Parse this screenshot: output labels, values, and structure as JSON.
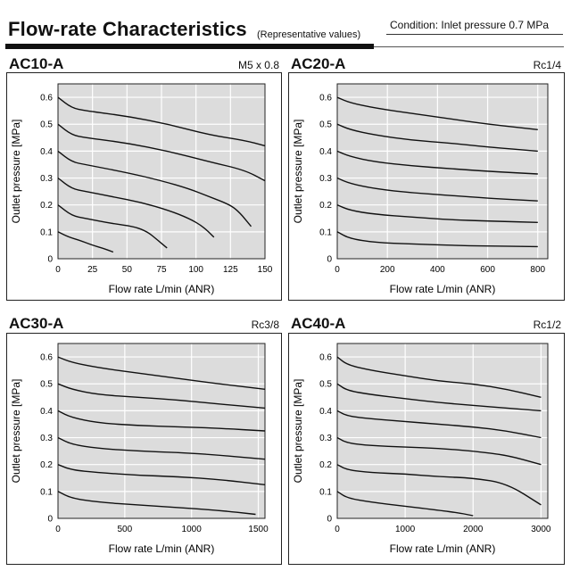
{
  "header": {
    "title": "Flow-rate Characteristics",
    "subtitle": "(Representative values)",
    "condition": "Condition: Inlet pressure 0.7 MPa"
  },
  "colors": {
    "plot_background": "#dcdcdc",
    "curve": "#111111",
    "grid": "#ffffff"
  },
  "chart_data": [
    {
      "type": "line",
      "model": "AC10-A",
      "port": "M5 x 0.8",
      "xlabel": "Flow rate L/min (ANR)",
      "ylabel": "Outlet pressure [MPa]",
      "xlim": [
        0,
        150
      ],
      "ylim": [
        0,
        0.65
      ],
      "xticks": [
        0,
        25,
        50,
        75,
        100,
        125,
        150
      ],
      "yticks": [
        0,
        0.1,
        0.2,
        0.3,
        0.4,
        0.5,
        0.6
      ],
      "grid": true,
      "series": [
        {
          "values": [
            [
              0,
              0.6
            ],
            [
              10,
              0.56
            ],
            [
              20,
              0.55
            ],
            [
              50,
              0.53
            ],
            [
              80,
              0.5
            ],
            [
              110,
              0.46
            ],
            [
              135,
              0.44
            ],
            [
              150,
              0.42
            ]
          ]
        },
        {
          "values": [
            [
              0,
              0.5
            ],
            [
              10,
              0.46
            ],
            [
              20,
              0.45
            ],
            [
              50,
              0.43
            ],
            [
              80,
              0.4
            ],
            [
              110,
              0.36
            ],
            [
              135,
              0.33
            ],
            [
              150,
              0.29
            ]
          ]
        },
        {
          "values": [
            [
              0,
              0.4
            ],
            [
              10,
              0.36
            ],
            [
              20,
              0.35
            ],
            [
              50,
              0.32
            ],
            [
              75,
              0.29
            ],
            [
              95,
              0.26
            ],
            [
              110,
              0.23
            ],
            [
              125,
              0.2
            ],
            [
              132,
              0.17
            ],
            [
              140,
              0.12
            ]
          ]
        },
        {
          "values": [
            [
              0,
              0.3
            ],
            [
              10,
              0.26
            ],
            [
              20,
              0.25
            ],
            [
              40,
              0.23
            ],
            [
              60,
              0.21
            ],
            [
              80,
              0.18
            ],
            [
              95,
              0.15
            ],
            [
              105,
              0.12
            ],
            [
              113,
              0.08
            ]
          ]
        },
        {
          "values": [
            [
              0,
              0.2
            ],
            [
              10,
              0.16
            ],
            [
              20,
              0.15
            ],
            [
              40,
              0.13
            ],
            [
              55,
              0.12
            ],
            [
              65,
              0.1
            ],
            [
              72,
              0.07
            ],
            [
              79,
              0.04
            ]
          ]
        },
        {
          "values": [
            [
              0,
              0.1
            ],
            [
              8,
              0.08
            ],
            [
              15,
              0.07
            ],
            [
              25,
              0.05
            ],
            [
              32,
              0.04
            ],
            [
              40,
              0.025
            ]
          ]
        }
      ]
    },
    {
      "type": "line",
      "model": "AC20-A",
      "port": "Rc1/4",
      "xlabel": "Flow rate L/min (ANR)",
      "ylabel": "Outlet pressure [MPa]",
      "xlim": [
        0,
        840
      ],
      "ylim": [
        0,
        0.65
      ],
      "xticks": [
        0,
        200,
        400,
        600,
        800
      ],
      "yticks": [
        0,
        0.1,
        0.2,
        0.3,
        0.4,
        0.5,
        0.6
      ],
      "grid": true,
      "series": [
        {
          "values": [
            [
              0,
              0.6
            ],
            [
              50,
              0.58
            ],
            [
              150,
              0.56
            ],
            [
              300,
              0.54
            ],
            [
              450,
              0.52
            ],
            [
              600,
              0.5
            ],
            [
              800,
              0.48
            ]
          ]
        },
        {
          "values": [
            [
              0,
              0.5
            ],
            [
              50,
              0.48
            ],
            [
              150,
              0.46
            ],
            [
              300,
              0.44
            ],
            [
              450,
              0.43
            ],
            [
              600,
              0.415
            ],
            [
              800,
              0.4
            ]
          ]
        },
        {
          "values": [
            [
              0,
              0.4
            ],
            [
              50,
              0.38
            ],
            [
              150,
              0.36
            ],
            [
              300,
              0.345
            ],
            [
              450,
              0.335
            ],
            [
              600,
              0.325
            ],
            [
              800,
              0.315
            ]
          ]
        },
        {
          "values": [
            [
              0,
              0.3
            ],
            [
              50,
              0.28
            ],
            [
              150,
              0.26
            ],
            [
              300,
              0.245
            ],
            [
              450,
              0.235
            ],
            [
              600,
              0.225
            ],
            [
              800,
              0.215
            ]
          ]
        },
        {
          "values": [
            [
              0,
              0.2
            ],
            [
              50,
              0.18
            ],
            [
              150,
              0.165
            ],
            [
              300,
              0.155
            ],
            [
              450,
              0.145
            ],
            [
              600,
              0.14
            ],
            [
              800,
              0.135
            ]
          ]
        },
        {
          "values": [
            [
              0,
              0.1
            ],
            [
              50,
              0.075
            ],
            [
              150,
              0.06
            ],
            [
              300,
              0.055
            ],
            [
              450,
              0.05
            ],
            [
              600,
              0.047
            ],
            [
              800,
              0.045
            ]
          ]
        }
      ]
    },
    {
      "type": "line",
      "model": "AC30-A",
      "port": "Rc3/8",
      "xlabel": "Flow rate L/min (ANR)",
      "ylabel": "Outlet pressure [MPa]",
      "xlim": [
        0,
        1550
      ],
      "ylim": [
        0,
        0.65
      ],
      "xticks": [
        0,
        500,
        1000,
        1500
      ],
      "yticks": [
        0,
        0.1,
        0.2,
        0.3,
        0.4,
        0.5,
        0.6
      ],
      "grid": true,
      "series": [
        {
          "values": [
            [
              0,
              0.6
            ],
            [
              100,
              0.58
            ],
            [
              300,
              0.56
            ],
            [
              600,
              0.54
            ],
            [
              900,
              0.52
            ],
            [
              1200,
              0.5
            ],
            [
              1550,
              0.48
            ]
          ]
        },
        {
          "values": [
            [
              0,
              0.5
            ],
            [
              100,
              0.48
            ],
            [
              300,
              0.46
            ],
            [
              600,
              0.45
            ],
            [
              900,
              0.44
            ],
            [
              1200,
              0.425
            ],
            [
              1550,
              0.41
            ]
          ]
        },
        {
          "values": [
            [
              0,
              0.4
            ],
            [
              100,
              0.375
            ],
            [
              300,
              0.355
            ],
            [
              600,
              0.345
            ],
            [
              900,
              0.34
            ],
            [
              1200,
              0.335
            ],
            [
              1550,
              0.325
            ]
          ]
        },
        {
          "values": [
            [
              0,
              0.3
            ],
            [
              100,
              0.275
            ],
            [
              300,
              0.26
            ],
            [
              600,
              0.25
            ],
            [
              900,
              0.245
            ],
            [
              1200,
              0.235
            ],
            [
              1550,
              0.22
            ]
          ]
        },
        {
          "values": [
            [
              0,
              0.2
            ],
            [
              100,
              0.18
            ],
            [
              300,
              0.17
            ],
            [
              600,
              0.16
            ],
            [
              900,
              0.155
            ],
            [
              1200,
              0.145
            ],
            [
              1550,
              0.125
            ]
          ]
        },
        {
          "values": [
            [
              0,
              0.1
            ],
            [
              100,
              0.075
            ],
            [
              300,
              0.06
            ],
            [
              600,
              0.05
            ],
            [
              900,
              0.04
            ],
            [
              1200,
              0.03
            ],
            [
              1480,
              0.015
            ]
          ]
        }
      ]
    },
    {
      "type": "line",
      "model": "AC40-A",
      "port": "Rc1/2",
      "xlabel": "Flow rate L/min (ANR)",
      "ylabel": "Outlet pressure [MPa]",
      "xlim": [
        0,
        3100
      ],
      "ylim": [
        0,
        0.65
      ],
      "xticks": [
        0,
        1000,
        2000,
        3000
      ],
      "yticks": [
        0,
        0.1,
        0.2,
        0.3,
        0.4,
        0.5,
        0.6
      ],
      "grid": true,
      "series": [
        {
          "values": [
            [
              0,
              0.6
            ],
            [
              150,
              0.57
            ],
            [
              500,
              0.55
            ],
            [
              1000,
              0.53
            ],
            [
              1500,
              0.51
            ],
            [
              2000,
              0.5
            ],
            [
              2500,
              0.48
            ],
            [
              3000,
              0.45
            ]
          ]
        },
        {
          "values": [
            [
              0,
              0.5
            ],
            [
              150,
              0.475
            ],
            [
              500,
              0.46
            ],
            [
              1000,
              0.445
            ],
            [
              1500,
              0.43
            ],
            [
              2000,
              0.42
            ],
            [
              2500,
              0.41
            ],
            [
              3000,
              0.4
            ]
          ]
        },
        {
          "values": [
            [
              0,
              0.4
            ],
            [
              150,
              0.38
            ],
            [
              500,
              0.37
            ],
            [
              1000,
              0.36
            ],
            [
              1500,
              0.35
            ],
            [
              2000,
              0.34
            ],
            [
              2500,
              0.325
            ],
            [
              3000,
              0.3
            ]
          ]
        },
        {
          "values": [
            [
              0,
              0.3
            ],
            [
              150,
              0.28
            ],
            [
              500,
              0.27
            ],
            [
              1000,
              0.265
            ],
            [
              1500,
              0.26
            ],
            [
              2000,
              0.25
            ],
            [
              2500,
              0.235
            ],
            [
              3000,
              0.2
            ]
          ]
        },
        {
          "values": [
            [
              0,
              0.2
            ],
            [
              150,
              0.18
            ],
            [
              500,
              0.17
            ],
            [
              1000,
              0.165
            ],
            [
              1500,
              0.155
            ],
            [
              2000,
              0.15
            ],
            [
              2500,
              0.13
            ],
            [
              3000,
              0.05
            ]
          ]
        },
        {
          "values": [
            [
              0,
              0.1
            ],
            [
              150,
              0.075
            ],
            [
              500,
              0.06
            ],
            [
              1000,
              0.045
            ],
            [
              1500,
              0.03
            ],
            [
              1800,
              0.02
            ],
            [
              2000,
              0.01
            ]
          ]
        }
      ]
    }
  ]
}
